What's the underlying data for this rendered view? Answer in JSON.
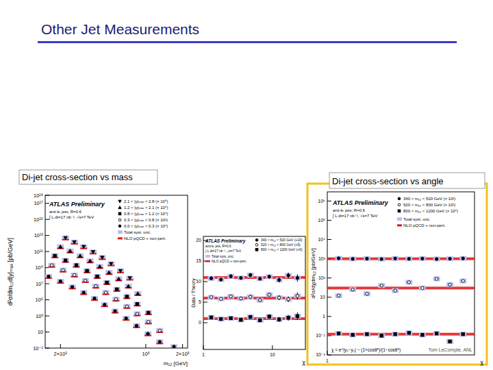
{
  "slide": {
    "title": "Other Jet Measurements",
    "footer": "Tom LeCompte, ANL"
  },
  "chart_data": [
    {
      "type": "scatter",
      "caption": "Di-jet cross-section vs mass",
      "title": "ATLAS Preliminary",
      "annotations": [
        "anti-kₜ jets, R=0.6",
        "∫ L dt=17 nb⁻¹, √s=7 TeV"
      ],
      "x_label": "m₁₂ [GeV]",
      "y_label": "d²σ/dm₁₂d|y|ₘₐₓ [pb/GeV]",
      "log": true,
      "xlim": [
        150,
        2200
      ],
      "ylim": [
        0.1,
        1e+18
      ],
      "xticks": [
        {
          "value": 200,
          "label": "2×10²"
        },
        {
          "value": 1000,
          "label": "10³"
        },
        {
          "value": 2000,
          "label": "2×10³"
        }
      ],
      "yticks": [
        {
          "value": 0.1,
          "label": "10⁻¹"
        },
        10,
        {
          "value": 1000,
          "label": "10³"
        },
        {
          "value": 100000,
          "label": "10⁵"
        },
        {
          "value": 10000000.0,
          "label": "10⁷"
        },
        {
          "value": 1000000000.0,
          "label": "10⁹"
        },
        {
          "value": 100000000000.0,
          "label": "10¹¹"
        },
        {
          "value": 10000000000000.0,
          "label": "10¹³"
        },
        {
          "value": 1000000000000000.0,
          "label": "10¹⁵"
        },
        {
          "value": 1e+17,
          "label": "10¹⁷"
        },
        {
          "value": 1e+18,
          "label": "10¹⁸"
        }
      ],
      "legend": "top-right",
      "syst_label": "Total syst. unc.",
      "theory_label": "NLO pQCD + non-pert.",
      "series": [
        {
          "name": "2.1 < |y|ₘₐₓ < 2.8 (× 10⁸)",
          "marker": "triangle-down",
          "x": [
            220,
            260,
            310,
            370,
            440,
            520,
            620,
            740
          ],
          "values": [
            5000000000000.0,
            1500000000000.0,
            400000000000.0,
            90000000000.0,
            18000000000.0,
            3000000000.0,
            400000000.0,
            50000000.0
          ]
        },
        {
          "name": "1.2 < |y|ₘₐₓ < 2.1 (× 10⁶)",
          "marker": "triangle",
          "x": [
            200,
            240,
            290,
            350,
            420,
            500,
            600,
            720,
            860
          ],
          "values": [
            400000000000.0,
            120000000000.0,
            30000000000.0,
            7000000000.0,
            1400000000.0,
            250000000.0,
            40000000.0,
            5000000.0,
            600000.0
          ]
        },
        {
          "name": "0.8 < |y|ₘₐₓ < 1.2 (× 10⁴)",
          "marker": "square",
          "x": [
            180,
            220,
            270,
            330,
            400,
            480,
            580,
            700,
            850,
            1050
          ],
          "values": [
            30000000000.0,
            8000000000.0,
            2000000000.0,
            400000000.0,
            80000000.0,
            14000000.0,
            2000000.0,
            250000.0,
            30000.0,
            2500
          ]
        },
        {
          "name": "0.3 < |y|ₘₐₓ < 0.8 (× 10²)",
          "marker": "circle-open",
          "x": [
            170,
            210,
            260,
            320,
            390,
            470,
            570,
            700,
            850,
            1050,
            1300
          ],
          "values": [
            2000000000.0,
            500000000.0,
            120000000.0,
            25000000.0,
            5000000.0,
            800000.0,
            120000.0,
            15000,
            1800,
            180,
            15
          ]
        },
        {
          "name": "0.0 < |y|ₘₐₓ < 0.3 (× 10⁰)",
          "marker": "circle",
          "x": [
            160,
            200,
            250,
            310,
            380,
            460,
            560,
            690,
            840,
            1040,
            1300,
            1700
          ],
          "values": [
            80000000.0,
            20000000.0,
            4000000.0,
            800000.0,
            150000.0,
            25000,
            4000,
            500,
            60,
            6,
            0.6,
            0.15
          ]
        }
      ]
    },
    {
      "type": "scatter",
      "title": "ATLAS Preliminary",
      "annotations": [
        "anti-kₜ jets, R=0.6",
        "∫ L dt=17 nb⁻¹, √s=7 TeV"
      ],
      "x_label": "χ",
      "y_label": "Data / Theory",
      "log": "x",
      "xlim": [
        1,
        30
      ],
      "ylim": [
        -6.5,
        21
      ],
      "xticks": [
        1,
        10
      ],
      "yticks": [
        0,
        5,
        10,
        15,
        20
      ],
      "legend": "top-right",
      "syst_label": "Total syst. unc.",
      "theory_label": "NLO pQCD + non-pert.",
      "series": [
        {
          "name": "340 < m₁₂ < 520 GeV (+10)",
          "marker": "circle",
          "theory": 11,
          "x": [
            1.3,
            1.8,
            2.5,
            3.5,
            4.8,
            6.6,
            9,
            12.5,
            17,
            23
          ],
          "values": [
            10.8,
            10.5,
            11.3,
            10.9,
            11.6,
            10.7,
            11.2,
            10.4,
            11.5,
            10.9
          ],
          "errors": [
            0.5,
            0.4,
            0.5,
            0.4,
            0.5,
            0.4,
            0.5,
            0.6,
            0.7,
            0.9
          ]
        },
        {
          "name": "520 < m₁₂ < 800 GeV (+5)",
          "marker": "circle-open",
          "theory": 6,
          "x": [
            1.3,
            1.8,
            2.5,
            3.5,
            4.8,
            6.6,
            9,
            12.5,
            17,
            23
          ],
          "values": [
            6.2,
            5.8,
            6.4,
            5.9,
            6.3,
            5.5,
            6.8,
            6.1,
            5.7,
            6.5
          ],
          "errors": [
            0.4,
            0.4,
            0.4,
            0.4,
            0.5,
            0.5,
            0.5,
            0.6,
            0.7,
            0.9
          ]
        },
        {
          "name": "800 < m₁₂ < 1200 GeV (+0)",
          "marker": "square",
          "theory": 1,
          "x": [
            1.3,
            1.8,
            2.5,
            3.5,
            4.8,
            6.6,
            9,
            12.5,
            17,
            23
          ],
          "values": [
            1.3,
            0.9,
            1.1,
            0.7,
            1.4,
            0.6,
            1.5,
            0.8,
            1.2,
            1.6
          ],
          "errors": [
            0.3,
            0.3,
            0.3,
            0.4,
            0.4,
            0.4,
            0.5,
            0.6,
            0.7,
            0.9
          ]
        }
      ]
    },
    {
      "type": "scatter",
      "caption": "Di-jet cross-section vs angle",
      "title": "ATLAS Preliminary",
      "annotations": [
        "anti-kₜ jets, R=0.6",
        "∫ L dt=17 nb⁻¹, √s=7 TeV"
      ],
      "formula": "χ = e^|y₁−y₂| ~ (1+cosθ*)/(1−cosθ*)",
      "x_label": "χ",
      "y_label": "d²σ/dχdm₁₂ [pb/GeV]",
      "log": true,
      "xlim": [
        1,
        30
      ],
      "ylim": [
        0.01,
        3000000
      ],
      "xticks": [
        1
      ],
      "yticks": [
        {
          "value": 0.01,
          "label": "10⁻²"
        },
        {
          "value": 0.1,
          "label": "10⁻¹"
        },
        1,
        10,
        {
          "value": 100,
          "label": "10²"
        },
        {
          "value": 1000,
          "label": "10³"
        },
        {
          "value": 10000,
          "label": "10⁴"
        },
        {
          "value": 100000,
          "label": "10⁵"
        },
        {
          "value": 1000000,
          "label": "10⁶"
        }
      ],
      "legend": "top-right",
      "syst_label": "Total syst. unc.",
      "theory_label": "NLO pQCD + non-pert.",
      "series": [
        {
          "name": "340 < m₁₂ < 520 GeV (× 10²)",
          "marker": "circle",
          "theory": 1000,
          "x": [
            1.3,
            1.8,
            2.5,
            3.5,
            4.8,
            6.6,
            9,
            12.5,
            17,
            23
          ],
          "values": [
            1050,
            980,
            1010,
            960,
            1030,
            990,
            1020,
            970,
            1000,
            1040
          ]
        },
        {
          "name": "520 < m₁₂ < 800 GeV (× 10¹)",
          "marker": "circle-open",
          "theory": 30,
          "x": [
            1.3,
            1.8,
            2.5,
            3.5,
            4.8,
            6.6,
            9,
            12.5,
            17,
            23
          ],
          "values": [
            12,
            25,
            15,
            40,
            22,
            60,
            30,
            90,
            45,
            70
          ]
        },
        {
          "name": "800 < m₁₂ < 1200 GeV (× 10⁰)",
          "marker": "square",
          "theory": 0.12,
          "x": [
            1.3,
            1.8,
            2.5,
            3.5,
            4.8,
            6.6,
            9,
            12.5,
            17,
            23
          ],
          "values": [
            0.13,
            0.11,
            0.12,
            0.1,
            0.12,
            0.14,
            0.11,
            0.13,
            0.05,
            0.12
          ]
        }
      ]
    }
  ]
}
